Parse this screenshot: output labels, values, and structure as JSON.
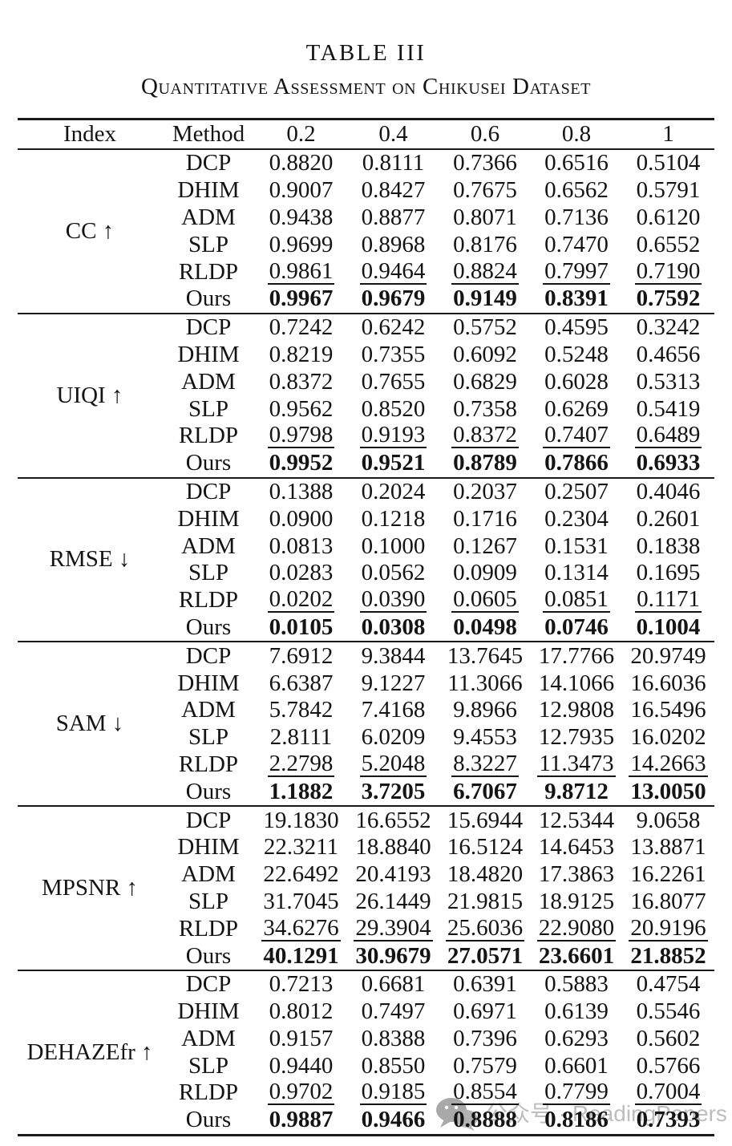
{
  "caption": {
    "title": "TABLE III",
    "subtitle": "Quantitative Assessment on Chikusei Dataset"
  },
  "table": {
    "columns": [
      "Index",
      "Method",
      "0.2",
      "0.4",
      "0.6",
      "0.8",
      "1"
    ],
    "sections": [
      {
        "index": "CC ↑",
        "rows": [
          {
            "method": "DCP",
            "style": "normal",
            "values": [
              "0.8820",
              "0.8111",
              "0.7366",
              "0.6516",
              "0.5104"
            ]
          },
          {
            "method": "DHIM",
            "style": "normal",
            "values": [
              "0.9007",
              "0.8427",
              "0.7675",
              "0.6562",
              "0.5791"
            ]
          },
          {
            "method": "ADM",
            "style": "normal",
            "values": [
              "0.9438",
              "0.8877",
              "0.8071",
              "0.7136",
              "0.6120"
            ]
          },
          {
            "method": "SLP",
            "style": "normal",
            "values": [
              "0.9699",
              "0.8968",
              "0.8176",
              "0.7470",
              "0.6552"
            ]
          },
          {
            "method": "RLDP",
            "style": "underline",
            "values": [
              "0.9861",
              "0.9464",
              "0.8824",
              "0.7997",
              "0.7190"
            ]
          },
          {
            "method": "Ours",
            "style": "bold",
            "values": [
              "0.9967",
              "0.9679",
              "0.9149",
              "0.8391",
              "0.7592"
            ]
          }
        ]
      },
      {
        "index": "UIQI ↑",
        "rows": [
          {
            "method": "DCP",
            "style": "normal",
            "values": [
              "0.7242",
              "0.6242",
              "0.5752",
              "0.4595",
              "0.3242"
            ]
          },
          {
            "method": "DHIM",
            "style": "normal",
            "values": [
              "0.8219",
              "0.7355",
              "0.6092",
              "0.5248",
              "0.4656"
            ]
          },
          {
            "method": "ADM",
            "style": "normal",
            "values": [
              "0.8372",
              "0.7655",
              "0.6829",
              "0.6028",
              "0.5313"
            ]
          },
          {
            "method": "SLP",
            "style": "normal",
            "values": [
              "0.9562",
              "0.8520",
              "0.7358",
              "0.6269",
              "0.5419"
            ]
          },
          {
            "method": "RLDP",
            "style": "underline",
            "values": [
              "0.9798",
              "0.9193",
              "0.8372",
              "0.7407",
              "0.6489"
            ]
          },
          {
            "method": "Ours",
            "style": "bold",
            "values": [
              "0.9952",
              "0.9521",
              "0.8789",
              "0.7866",
              "0.6933"
            ]
          }
        ]
      },
      {
        "index": "RMSE ↓",
        "rows": [
          {
            "method": "DCP",
            "style": "normal",
            "values": [
              "0.1388",
              "0.2024",
              "0.2037",
              "0.2507",
              "0.4046"
            ]
          },
          {
            "method": "DHIM",
            "style": "normal",
            "values": [
              "0.0900",
              "0.1218",
              "0.1716",
              "0.2304",
              "0.2601"
            ]
          },
          {
            "method": "ADM",
            "style": "normal",
            "values": [
              "0.0813",
              "0.1000",
              "0.1267",
              "0.1531",
              "0.1838"
            ]
          },
          {
            "method": "SLP",
            "style": "normal",
            "values": [
              "0.0283",
              "0.0562",
              "0.0909",
              "0.1314",
              "0.1695"
            ]
          },
          {
            "method": "RLDP",
            "style": "underline",
            "values": [
              "0.0202",
              "0.0390",
              "0.0605",
              "0.0851",
              "0.1171"
            ]
          },
          {
            "method": "Ours",
            "style": "bold",
            "values": [
              "0.0105",
              "0.0308",
              "0.0498",
              "0.0746",
              "0.1004"
            ]
          }
        ]
      },
      {
        "index": "SAM ↓",
        "rows": [
          {
            "method": "DCP",
            "style": "normal",
            "values": [
              "7.6912",
              "9.3844",
              "13.7645",
              "17.7766",
              "20.9749"
            ]
          },
          {
            "method": "DHIM",
            "style": "normal",
            "values": [
              "6.6387",
              "9.1227",
              "11.3066",
              "14.1066",
              "16.6036"
            ]
          },
          {
            "method": "ADM",
            "style": "normal",
            "values": [
              "5.7842",
              "7.4168",
              "9.8966",
              "12.9808",
              "16.5496"
            ]
          },
          {
            "method": "SLP",
            "style": "normal",
            "values": [
              "2.8111",
              "6.0209",
              "9.4553",
              "12.7935",
              "16.0202"
            ]
          },
          {
            "method": "RLDP",
            "style": "underline",
            "values": [
              "2.2798",
              "5.2048",
              "8.3227",
              "11.3473",
              "14.2663"
            ]
          },
          {
            "method": "Ours",
            "style": "bold",
            "values": [
              "1.1882",
              "3.7205",
              "6.7067",
              "9.8712",
              "13.0050"
            ]
          }
        ]
      },
      {
        "index": "MPSNR ↑",
        "rows": [
          {
            "method": "DCP",
            "style": "normal",
            "values": [
              "19.1830",
              "16.6552",
              "15.6944",
              "12.5344",
              "9.0658"
            ]
          },
          {
            "method": "DHIM",
            "style": "normal",
            "values": [
              "22.3211",
              "18.8840",
              "16.5124",
              "14.6453",
              "13.8871"
            ]
          },
          {
            "method": "ADM",
            "style": "normal",
            "values": [
              "22.6492",
              "20.4193",
              "18.4820",
              "17.3863",
              "16.2261"
            ]
          },
          {
            "method": "SLP",
            "style": "normal",
            "values": [
              "31.7045",
              "26.1449",
              "21.9815",
              "18.9125",
              "16.8077"
            ]
          },
          {
            "method": "RLDP",
            "style": "underline",
            "values": [
              "34.6276",
              "29.3904",
              "25.6036",
              "22.9080",
              "20.9196"
            ]
          },
          {
            "method": "Ours",
            "style": "bold",
            "values": [
              "40.1291",
              "30.9679",
              "27.0571",
              "23.6601",
              "21.8852"
            ]
          }
        ]
      },
      {
        "index": "DEHAZEfr ↑",
        "rows": [
          {
            "method": "DCP",
            "style": "normal",
            "values": [
              "0.7213",
              "0.6681",
              "0.6391",
              "0.5883",
              "0.4754"
            ]
          },
          {
            "method": "DHIM",
            "style": "normal",
            "values": [
              "0.8012",
              "0.7497",
              "0.6971",
              "0.6139",
              "0.5546"
            ]
          },
          {
            "method": "ADM",
            "style": "normal",
            "values": [
              "0.9157",
              "0.8388",
              "0.7396",
              "0.6293",
              "0.5602"
            ]
          },
          {
            "method": "SLP",
            "style": "normal",
            "values": [
              "0.9440",
              "0.8550",
              "0.7579",
              "0.6601",
              "0.5766"
            ]
          },
          {
            "method": "RLDP",
            "style": "underline",
            "values": [
              "0.9702",
              "0.9185",
              "0.8554",
              "0.7799",
              "0.7004"
            ]
          },
          {
            "method": "Ours",
            "style": "bold",
            "values": [
              "0.9887",
              "0.9466",
              "0.8888",
              "0.8186",
              "0.7393"
            ]
          }
        ]
      }
    ]
  },
  "watermark": {
    "icon": "wechat-icon",
    "text": "公众号 · ReadingPapers",
    "text_color": "#bdbdbd",
    "icon_color": "#a9a9a9"
  }
}
